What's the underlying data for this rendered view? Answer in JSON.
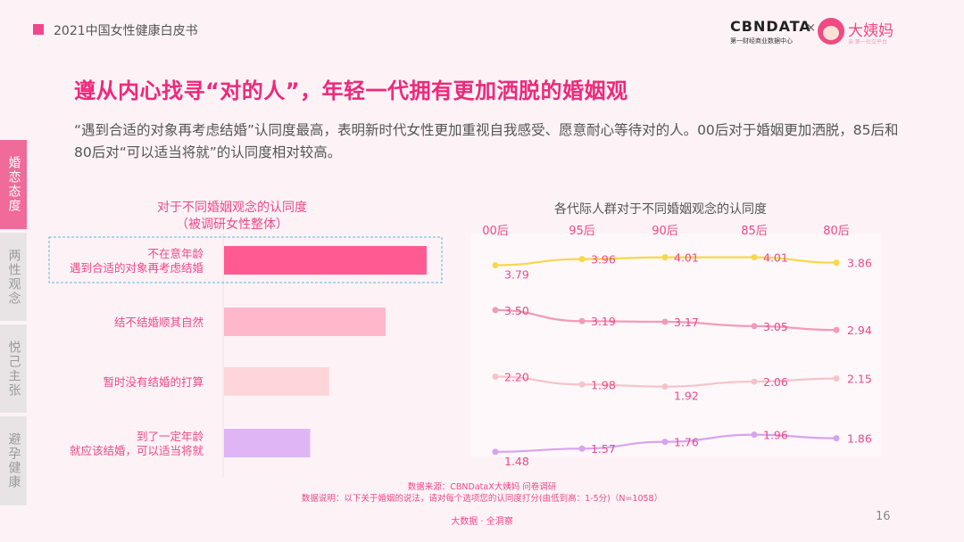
{
  "header": {
    "report_title": "2021中国女性健康白皮书"
  },
  "logo": {
    "cbn": "CBNDATA",
    "cbn_sub": "第一财经商业数据中心",
    "x": "×",
    "dym": "大姨妈",
    "dym_sub": "亲·第一社交平台"
  },
  "title": "遵从内心找寻“对的人”，年轻一代拥有更加洒脱的婚姻观",
  "description": "“遇到合适的对象再考虑结婚”认同度最高，表明新时代女性更加重视自我感受、愿意耐心等待对的人。00后对于婚姻更加洒脱，85后和80后对“可以适当将就”的认同度相对较高。",
  "sidebar": [
    {
      "label": "婚恋态度",
      "active": true
    },
    {
      "label": "两性观念",
      "active": false
    },
    {
      "label": "悦己主张",
      "active": false
    },
    {
      "label": "避孕健康",
      "active": false
    }
  ],
  "subtitles": {
    "left_line1": "对于不同婚姻观念的认同度",
    "left_line2": "（被调研女性整体）",
    "right": "各代际人群对于不同婚姻观念的认同度"
  },
  "chart_data": [
    {
      "type": "bar",
      "orientation": "horizontal",
      "title": "对于不同婚姻观念的认同度（被调研女性整体）",
      "categories": [
        [
          "不在意年龄",
          "遇到合适的对象再考虑结婚"
        ],
        [
          "结不结婚顺其自然"
        ],
        [
          "暂时没有结婚的打算"
        ],
        [
          "到了一定年龄",
          "就应该结婚，可以适当将就"
        ]
      ],
      "values": [
        3.95,
        3.15,
        2.05,
        1.68
      ],
      "xlim": [
        0,
        5
      ],
      "colors": [
        "#ff5a92",
        "#ffb8cb",
        "#fed6da",
        "#e0b5f5"
      ],
      "highlight_index": 0
    },
    {
      "type": "line",
      "title": "各代际人群对于不同婚姻观念的认同度",
      "categories": [
        "00后",
        "95后",
        "90后",
        "85后",
        "80后"
      ],
      "series": [
        {
          "name": "不在意年龄 遇到合适的对象再考虑结婚",
          "values": [
            3.79,
            3.96,
            4.01,
            4.01,
            3.86
          ],
          "color": "#f7d84a",
          "labels": [
            "3.79",
            "3.96",
            "4.01",
            "4.01",
            "3.86"
          ]
        },
        {
          "name": "结不结婚顺其自然",
          "values": [
            3.5,
            3.19,
            3.17,
            3.05,
            2.94
          ],
          "color": "#f29bb8",
          "labels": [
            "3.50",
            "3.19",
            "3.17",
            "3.05",
            "2.94"
          ]
        },
        {
          "name": "暂时没有结婚的打算",
          "values": [
            2.2,
            1.98,
            1.92,
            2.06,
            2.15
          ],
          "color": "#f6c3cb",
          "labels": [
            "2.20",
            "1.98",
            "1.92",
            "2.06",
            "2.15"
          ]
        },
        {
          "name": "到了一定年龄 就应该结婚，可以适当将就",
          "values": [
            1.48,
            1.57,
            1.76,
            1.96,
            1.86
          ],
          "color": "#d8a3ef",
          "labels": [
            "1.48",
            "1.57",
            "1.76",
            "1.96",
            "1.86"
          ]
        }
      ]
    }
  ],
  "footer": {
    "source": "数据来源：CBNDataX大姨妈 问卷调研",
    "note": "数据说明：以下关于婚姻的说法，请对每个选项您的认同度打分(由低到高：1-5分)（N=1058）",
    "brand": "大数据 · 全洞察",
    "page": "16"
  }
}
